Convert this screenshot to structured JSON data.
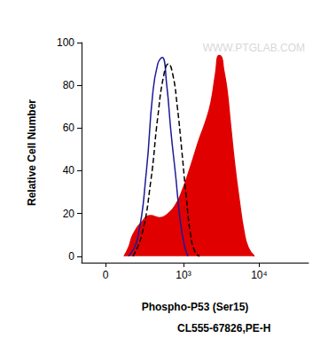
{
  "chart_data": {
    "type": "line",
    "xlabel": "Phospho-P53 (Ser15)",
    "subtitle": "CL555-67826,PE-H",
    "ylabel": "Relative Cell Number",
    "annotations": [
      "WWW.PTGLAB.COM"
    ],
    "log": "x",
    "grid": false,
    "xlim": [
      -150,
      44500
    ],
    "xticks": [
      0,
      {
        "value": 1000,
        "label": "10³"
      },
      {
        "value": 10000,
        "label": "10⁴"
      }
    ],
    "ylim": [
      -3,
      100
    ],
    "yticks": [
      0,
      20,
      40,
      60,
      80,
      100
    ],
    "series": [
      {
        "type": "area",
        "color": "#e00000",
        "line_style": "solid",
        "x": [
          113,
          144,
          177,
          254,
          350,
          469,
          625,
          783,
          946,
          1245,
          1632,
          1970,
          2318,
          2652,
          2955,
          3205,
          3380,
          3762,
          4180,
          4788,
          5472,
          6270,
          7163,
          8645
        ],
        "values": [
          0,
          4,
          10,
          16,
          19,
          18,
          20,
          24,
          30,
          42,
          55,
          63,
          72,
          85,
          94,
          93,
          88,
          78,
          62,
          42,
          26,
          12,
          4,
          0
        ]
      },
      {
        "type": "line",
        "color": "#1a1a99",
        "line_style": "solid",
        "x": [
          144,
          214,
          301,
          372,
          443,
          513,
          593,
          678,
          783,
          895,
          1028,
          1146
        ],
        "values": [
          0,
          8,
          40,
          75,
          90,
          93,
          80,
          58,
          38,
          18,
          5,
          0
        ]
      },
      {
        "type": "line",
        "color": "#000000",
        "line_style": "dashed",
        "x": [
          177,
          254,
          350,
          443,
          541,
          625,
          718,
          826,
          946,
          1087,
          1245,
          1425,
          1632
        ],
        "values": [
          0,
          10,
          35,
          65,
          85,
          90,
          85,
          70,
          50,
          28,
          10,
          2,
          0
        ]
      }
    ]
  }
}
